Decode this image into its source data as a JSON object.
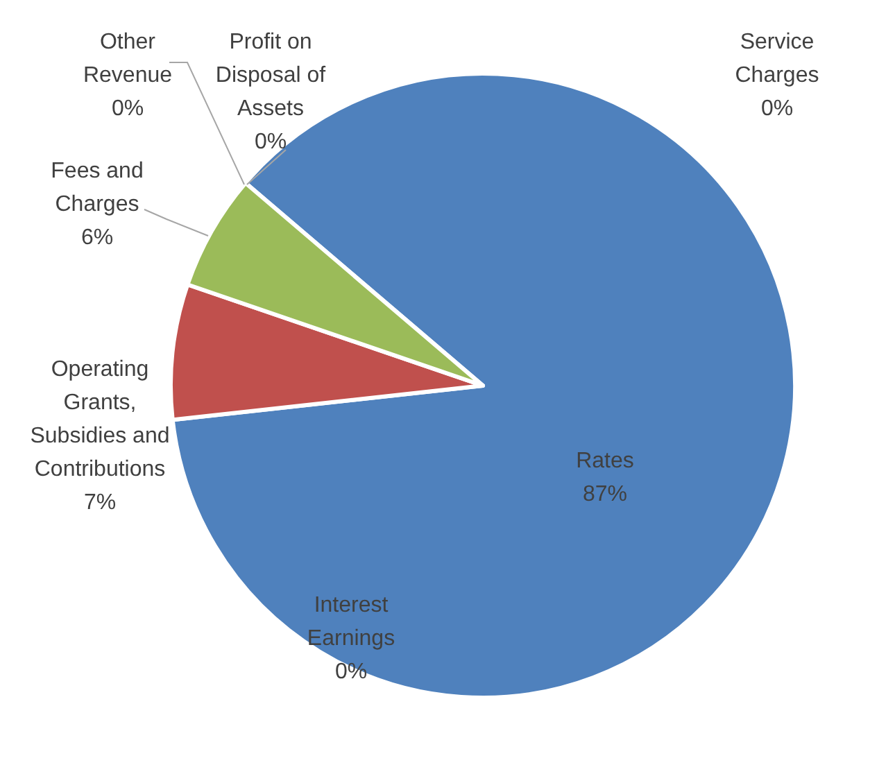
{
  "chart_data": {
    "type": "pie",
    "categories": [
      "Service Charges",
      "Rates",
      "Interest Earnings",
      "Operating Grants, Subsidies and Contributions",
      "Fees and Charges",
      "Other Revenue",
      "Profit on Disposal of Assets"
    ],
    "values": [
      0,
      87,
      0,
      7,
      6,
      0,
      0
    ],
    "value_labels": [
      "0%",
      "87%",
      "0%",
      "7%",
      "6%",
      "0%",
      "0%"
    ],
    "colors": [
      "#8064a2",
      "#4f81bd",
      "#4bacc6",
      "#c0504d",
      "#9bbb59",
      "#f79646",
      "#2c4d75"
    ]
  }
}
